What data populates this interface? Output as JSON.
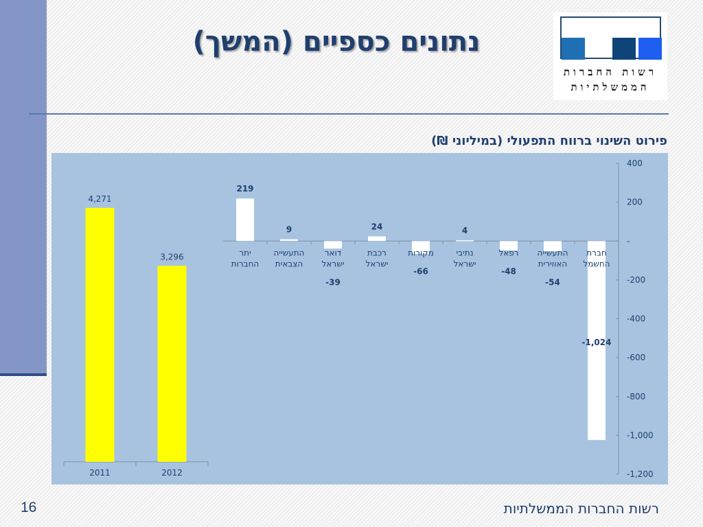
{
  "slide": {
    "title": "נתונים כספיים (המשך)",
    "subtitle": "פירוט השינוי ברווח התפעולי (במיליוני ₪)",
    "footer": "רשות החברות הממשלתיות",
    "page_number": "16"
  },
  "logo": {
    "line1": "רשות החברות",
    "line2": "הממשלתיות",
    "colors": [
      "#1f6fb5",
      "#0f4478",
      "#1e5ef0"
    ]
  },
  "colors": {
    "panel": "#a7c3e0",
    "bar_yellow": "#ffff00",
    "bar_white": "#ffffff",
    "label_blue": "#1f3f6e",
    "accent_side": "#8496c8"
  },
  "chart_data": [
    {
      "type": "bar",
      "categories": [
        "2011",
        "2012"
      ],
      "values": [
        4271,
        3296
      ],
      "value_labels": [
        "4,271",
        "3,296"
      ],
      "ylim": [
        0,
        4500
      ]
    },
    {
      "type": "bar",
      "categories": [
        [
          "יתר",
          "החברות"
        ],
        [
          "התעשייה",
          "הצבאית"
        ],
        [
          "דואר",
          "ישראל"
        ],
        [
          "רכבת",
          "ישראל"
        ],
        [
          "מקורות"
        ],
        [
          "נתיבי",
          "ישראל"
        ],
        [
          "רפאל"
        ],
        [
          "התעשייה",
          "האווירית"
        ],
        [
          "חברת",
          "החשמל"
        ]
      ],
      "values": [
        219,
        9,
        -39,
        24,
        -66,
        4,
        -48,
        -54,
        -1024
      ],
      "value_labels": [
        "219",
        "9",
        "-39",
        "24",
        "-66",
        "4",
        "-48",
        "-54",
        "-1,024"
      ],
      "y_axis_side": "right",
      "yticks": [
        400,
        200,
        0,
        -200,
        -400,
        -600,
        -800,
        -1000,
        -1200
      ],
      "ytick_labels": [
        "400",
        "200",
        "-",
        "-200",
        "-400",
        "-600",
        "-800",
        "-1,000",
        "-1,200"
      ],
      "ylim": [
        -1200,
        400
      ]
    }
  ]
}
